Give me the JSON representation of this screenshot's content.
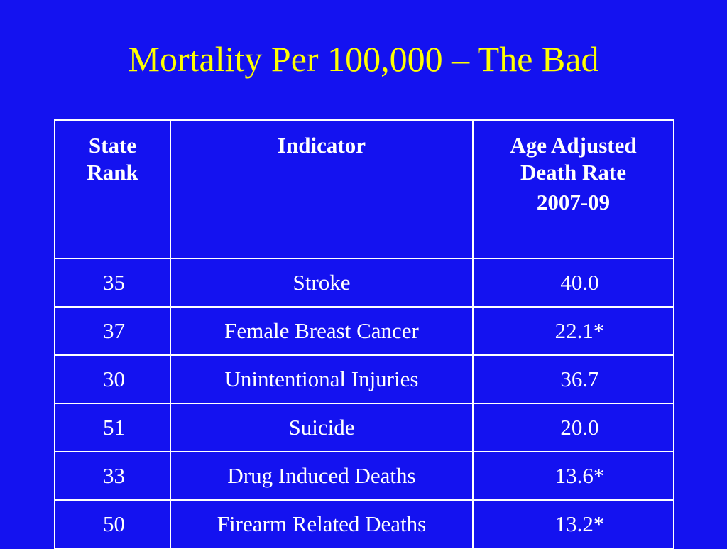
{
  "slide": {
    "title": "Mortality Per 100,000 – The Bad",
    "background_color": "#1412f0",
    "title_color": "#ffff00",
    "text_color": "#ffffff"
  },
  "table": {
    "headers": {
      "rank": {
        "line1": "State",
        "line2": "Rank"
      },
      "indicator": "Indicator",
      "rate": {
        "line1": "Age Adjusted",
        "line2": "Death Rate",
        "line3": "2007-09"
      }
    },
    "rows": [
      {
        "rank": "35",
        "indicator": "Stroke",
        "rate": "40.0"
      },
      {
        "rank": "37",
        "indicator": "Female Breast Cancer",
        "rate": "22.1*"
      },
      {
        "rank": "30",
        "indicator": "Unintentional Injuries",
        "rate": "36.7"
      },
      {
        "rank": "51",
        "indicator": "Suicide",
        "rate": "20.0"
      },
      {
        "rank": "33",
        "indicator": "Drug Induced Deaths",
        "rate": "13.6*"
      },
      {
        "rank": "50",
        "indicator": "Firearm Related Deaths",
        "rate": "13.2*"
      }
    ]
  }
}
